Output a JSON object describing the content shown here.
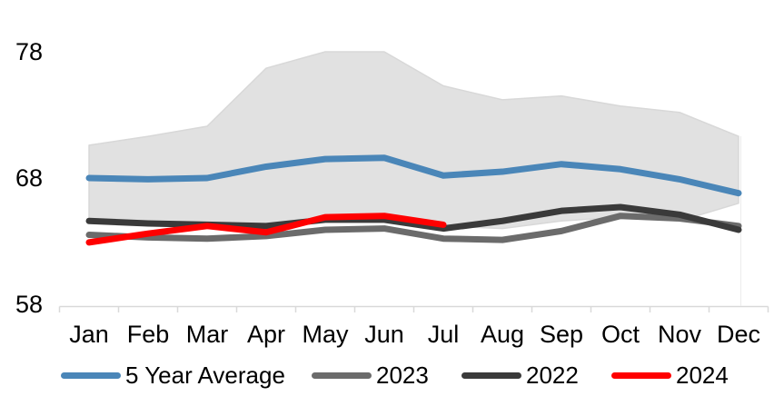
{
  "chart_data": {
    "type": "line",
    "title": "",
    "categories": [
      "Jan",
      "Feb",
      "Mar",
      "Apr",
      "May",
      "Jun",
      "Jul",
      "Aug",
      "Sep",
      "Oct",
      "Nov",
      "Dec"
    ],
    "y_axis": {
      "min": 58,
      "max": 78,
      "ticks": [
        78,
        68,
        58
      ],
      "tick_labels": [
        "78",
        "68",
        "58"
      ]
    },
    "band": {
      "name": "5-year-range-band",
      "fill_color": "#E1E1E1",
      "edge_color": "#D8D8D8",
      "max": [
        70.6,
        71.3,
        72.1,
        76.7,
        78.0,
        78.0,
        75.3,
        74.2,
        74.5,
        73.7,
        73.2,
        71.3
      ],
      "min": [
        64.7,
        64.5,
        64.3,
        64.3,
        64.9,
        64.9,
        64.2,
        64.0,
        64.6,
        64.9,
        64.6,
        66.0
      ]
    },
    "series": [
      {
        "name": "5 Year Average",
        "color": "#4A86B8",
        "values": [
          68.0,
          67.9,
          68.0,
          68.9,
          69.5,
          69.6,
          68.2,
          68.5,
          69.1,
          68.7,
          67.9,
          66.8
        ]
      },
      {
        "name": "2023",
        "color": "#6B6B6B",
        "values": [
          63.5,
          63.3,
          63.2,
          63.4,
          63.9,
          64.0,
          63.2,
          63.1,
          63.8,
          65.0,
          64.8,
          64.2
        ]
      },
      {
        "name": "2022",
        "color": "#3A3A3A",
        "values": [
          64.6,
          64.4,
          64.3,
          64.2,
          64.7,
          64.7,
          64.0,
          64.6,
          65.4,
          65.7,
          65.1,
          63.9
        ]
      },
      {
        "name": "2024",
        "color": "#FF0000",
        "values": [
          62.9,
          63.6,
          64.2,
          63.7,
          64.9,
          65.0,
          64.3,
          null,
          null,
          null,
          null,
          null
        ]
      }
    ],
    "legend": {
      "position": "bottom",
      "entries": [
        {
          "label": "5 Year Average",
          "color": "#4A86B8"
        },
        {
          "label": "2023",
          "color": "#6B6B6B"
        },
        {
          "label": "2022",
          "color": "#3A3A3A"
        },
        {
          "label": "2024",
          "color": "#FF0000"
        }
      ]
    },
    "grid": "off",
    "axis_line_color": "#D9D9D9"
  }
}
